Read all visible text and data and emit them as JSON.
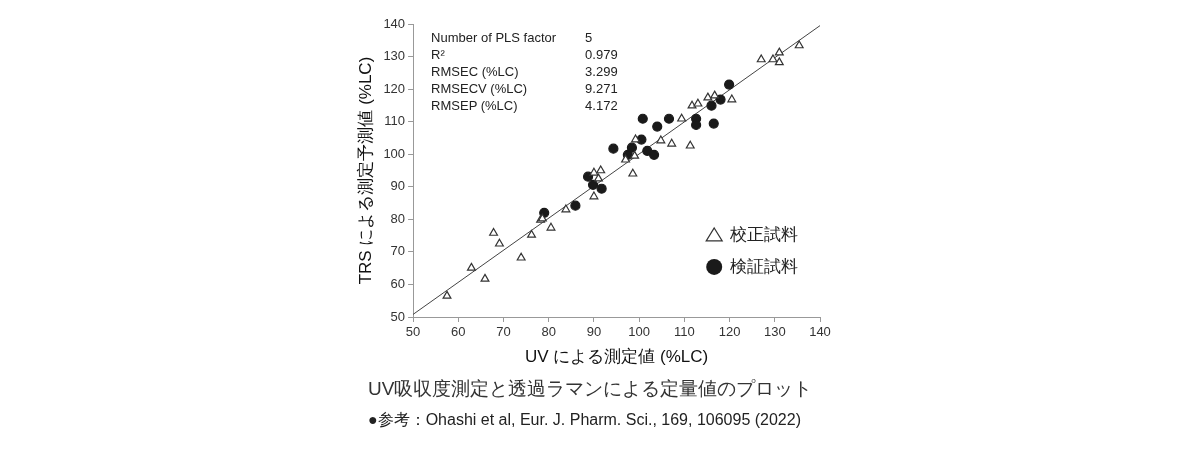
{
  "chart_data": {
    "type": "scatter",
    "title": "UV吸収度測定と透過ラマンによる定量値のプロット",
    "xlabel": "UV による測定値 (%LC)",
    "ylabel": "TRS による測定予測値 (%LC)",
    "xlim": [
      50,
      140
    ],
    "xticks": [
      50,
      60,
      70,
      80,
      90,
      100,
      110,
      120,
      130,
      140
    ],
    "ylim": [
      50,
      140
    ],
    "yticks": [
      50,
      60,
      70,
      80,
      90,
      100,
      110,
      120,
      130,
      140
    ],
    "grid": false,
    "legend": "right",
    "annotations": [
      "Number of PLS factor 5",
      "R² 0.979",
      "RMSEC (%LC) 3.299",
      "RMSECV (%LC) 9.271",
      "RMSEP (%LC) 4.172",
      "●参考：Ohashi et al, Eur. J. Pharm. Sci., 169, 106095 (2022)"
    ],
    "series": [
      {
        "name": "校正試料",
        "type": "scatter",
        "marker": "triangle",
        "color": "#333333",
        "x": [
          57.5,
          62.9,
          65.9,
          67.8,
          69.1,
          73.9,
          76.2,
          78.2,
          78.6,
          80.5,
          83.8,
          90,
          90,
          91,
          91.5,
          97,
          98.6,
          99,
          99.2,
          104.8,
          107.2,
          111.3,
          109.4,
          111.7,
          113,
          115.2,
          116.7,
          120.5,
          127,
          129.6,
          131,
          131,
          135.4
        ],
        "values": [
          56.5,
          65.1,
          61.7,
          75.8,
          72.5,
          68.2,
          75.2,
          79.8,
          80.2,
          77.4,
          83,
          87,
          94.3,
          92.5,
          95,
          98.3,
          94,
          99.5,
          104.5,
          104.2,
          103.2,
          102.6,
          110.9,
          114.9,
          115.5,
          117.4,
          118,
          116.8,
          129.1,
          129.1,
          131.2,
          128.2,
          133.4
        ]
      },
      {
        "name": "検証試料",
        "type": "scatter",
        "marker": "circle",
        "color": "#1a1a1a",
        "x": [
          79,
          85.9,
          88.7,
          89.8,
          91.7,
          94.3,
          97.5,
          98.4,
          100.5,
          101.8,
          103.3,
          100.8,
          104,
          106.6,
          112.6,
          112.6,
          116.5,
          116,
          118,
          119.9
        ],
        "values": [
          82,
          84.2,
          93.1,
          90.6,
          89.4,
          101.7,
          99.8,
          102,
          104.5,
          101,
          99.8,
          110.9,
          108.5,
          110.9,
          110.9,
          109,
          109.4,
          114.9,
          116.8,
          121.4
        ]
      },
      {
        "type": "line",
        "marker": "none",
        "color": "#444444",
        "x": [
          50,
          140
        ],
        "values": [
          50.8,
          139.5
        ]
      }
    ]
  }
}
